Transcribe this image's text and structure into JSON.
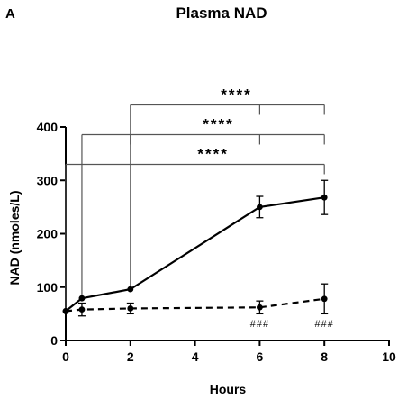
{
  "panel_label": "A",
  "chart_data": {
    "type": "line",
    "title": "Plasma NAD",
    "xlabel": "Hours",
    "ylabel": "NAD (nmoles/L)",
    "xlim": [
      0,
      10
    ],
    "ylim": [
      0,
      400
    ],
    "x_ticks": [
      0,
      2,
      4,
      6,
      8,
      10
    ],
    "y_ticks": [
      0,
      100,
      200,
      300,
      400
    ],
    "grid": false,
    "legend": "none",
    "series": [
      {
        "style": "solid",
        "x": [
          0,
          0.5,
          2,
          6,
          8
        ],
        "y": [
          55,
          79,
          96,
          250,
          268
        ],
        "err": [
          0,
          0,
          0,
          20,
          32
        ]
      },
      {
        "style": "dashed",
        "x": [
          0,
          0.5,
          2,
          6,
          8
        ],
        "y": [
          55,
          58,
          60,
          62,
          78
        ],
        "err": [
          0,
          12,
          10,
          12,
          28
        ]
      }
    ],
    "significance": [
      {
        "label": "****",
        "x_start": 2,
        "ticks": [
          6,
          8
        ],
        "level": 3
      },
      {
        "label": "****",
        "x_start": 0.5,
        "ticks": [
          2,
          6,
          8
        ],
        "level": 2
      },
      {
        "label": "****",
        "x_start": 0,
        "ticks": [
          8
        ],
        "level": 1
      }
    ],
    "point_annotations": [
      {
        "label": "###",
        "x": 6
      },
      {
        "label": "###",
        "x": 8
      }
    ]
  }
}
